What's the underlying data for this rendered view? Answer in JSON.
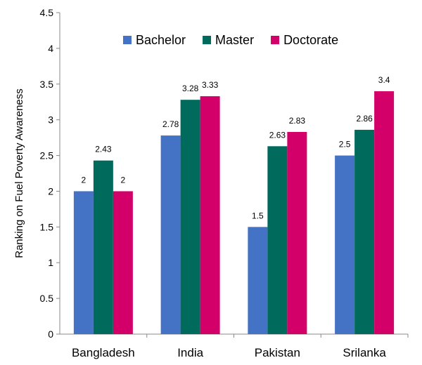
{
  "chart_data": {
    "type": "bar",
    "title": "",
    "xlabel": "",
    "ylabel": "Ranking on Fuel Poverty Awareness",
    "ylim": [
      0,
      4.5
    ],
    "yticks": [
      "0",
      "0.5",
      "1",
      "1.5",
      "2",
      "2.5",
      "3",
      "3.5",
      "4",
      "4.5"
    ],
    "categories": [
      "Bangladesh",
      "India",
      "Pakistan",
      "Srilanka"
    ],
    "legend_position": "top-center",
    "grid": false,
    "series": [
      {
        "name": "Bachelor",
        "color": "#4472C4",
        "values": [
          2,
          2.78,
          1.5,
          2.5
        ],
        "labels": [
          "2",
          "2.78",
          "1.5",
          "2.5"
        ]
      },
      {
        "name": "Master",
        "color": "#006B5C",
        "values": [
          2.43,
          3.28,
          2.63,
          2.86
        ],
        "labels": [
          "2.43",
          "3.28",
          "2.63",
          "2.86"
        ]
      },
      {
        "name": "Doctorate",
        "color": "#D4006A",
        "values": [
          2,
          3.33,
          2.83,
          3.4
        ],
        "labels": [
          "2",
          "3.33",
          "2.83",
          "3.4"
        ]
      }
    ]
  }
}
